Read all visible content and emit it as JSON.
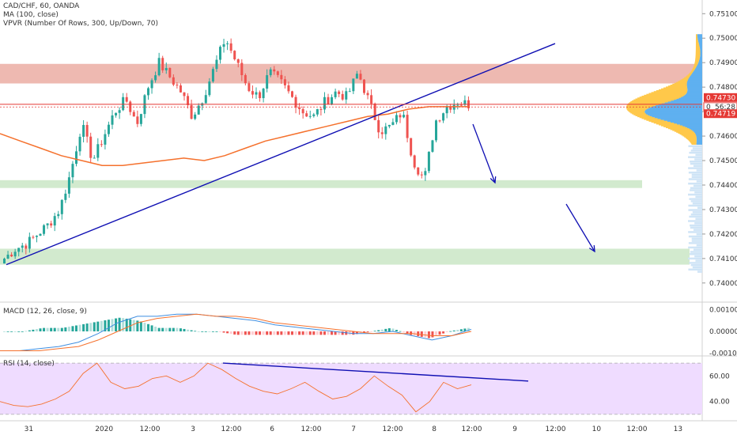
{
  "legend": {
    "symbol": "CAD/CHF, 60, OANDA",
    "ma": "MA (100, close)",
    "vpvr": "VPVR (Number Of Rows, 300, Up/Down, 70)",
    "macd": "MACD (12, 26, close, 9)",
    "rsi": "RSI (14, close)"
  },
  "price_tags": {
    "upper": "0.74730",
    "timer": "56:28",
    "lower": "0.74719",
    "prefix": "0"
  },
  "colors": {
    "up": "#26a69a",
    "down": "#ef5350",
    "ma": "#f5712d",
    "trend": "#0f0fb3",
    "resistance_zone": "#e8a197",
    "support_zone": "#cde8c9",
    "rsi_bg": "#efdcff",
    "macd_line": "#3f8ee0",
    "signal_line": "#f5712d",
    "level_line": "#e53935",
    "vp_up": "#5fb0f0",
    "vp_down": "#ffc84a"
  },
  "chart_data": [
    {
      "type": "candlestick",
      "title": "CAD/CHF, 60, OANDA",
      "ylim": [
        0.7398,
        0.7513
      ],
      "y_ticks": [
        "0.75100",
        "0.75000",
        "0.74900",
        "0.74800",
        "0.74700",
        "0.74600",
        "0.74500",
        "0.74400",
        "0.74300",
        "0.74200",
        "0.74100",
        "0.74000"
      ],
      "x_ticks": [
        "31",
        "2020",
        "12:00",
        "3",
        "12:00",
        "6",
        "12:00",
        "7",
        "12:00",
        "8",
        "12:00",
        "9",
        "12:00",
        "10",
        "12:00",
        "13"
      ],
      "ohlc_anchor_closes": [
        0.741,
        0.7414,
        0.7416,
        0.742,
        0.7424,
        0.743,
        0.7445,
        0.7465,
        0.745,
        0.746,
        0.747,
        0.7475,
        0.7465,
        0.748,
        0.749,
        0.7484,
        0.7478,
        0.7468,
        0.7476,
        0.7488,
        0.75,
        0.749,
        0.748,
        0.7476,
        0.7486,
        0.7482,
        0.7476,
        0.747,
        0.7468,
        0.7474,
        0.7478,
        0.7476,
        0.7486,
        0.7474,
        0.7462,
        0.7464,
        0.747,
        0.745,
        0.7442,
        0.7466,
        0.7472,
        0.7474,
        0.7473
      ],
      "ma": {
        "name": "MA (100, close)",
        "values": [
          0.7461,
          0.7458,
          0.7455,
          0.7452,
          0.745,
          0.7448,
          0.7448,
          0.7449,
          0.745,
          0.7451,
          0.745,
          0.7452,
          0.7455,
          0.7458,
          0.746,
          0.7462,
          0.7464,
          0.7466,
          0.7468,
          0.7469,
          0.7471,
          0.7472,
          0.7472,
          0.7472
        ]
      },
      "zones": [
        {
          "kind": "resistance",
          "from": 0.74815,
          "to": 0.74895
        },
        {
          "kind": "support",
          "from": 0.74388,
          "to": 0.7442
        },
        {
          "kind": "support",
          "from": 0.74075,
          "to": 0.7414
        }
      ],
      "horizontal_levels": [
        0.7473,
        0.74719
      ],
      "trend_line": [
        [
          0.74075,
          "31"
        ],
        [
          0.74978,
          "12:00 (9)"
        ]
      ]
    },
    {
      "type": "line",
      "title": "MACD (12, 26, close, 9)",
      "y_ticks": [
        "0.00100",
        "0.00000",
        "-0.00100"
      ],
      "ylim": [
        -0.0011,
        0.0011
      ],
      "series": [
        {
          "name": "MACD",
          "values": [
            -0.0009,
            -0.0009,
            -0.0008,
            -0.0007,
            -0.0005,
            -0.0001,
            0.0004,
            0.0007,
            0.0007,
            0.0008,
            0.0008,
            0.0007,
            0.0006,
            0.0005,
            0.0003,
            0.0002,
            0.0001,
            0.0,
            -0.0001,
            -0.0001,
            0.0,
            -0.0002,
            -0.0004,
            -0.0002,
            0.0001
          ]
        },
        {
          "name": "Signal",
          "values": [
            -0.0009,
            -0.0009,
            -0.0009,
            -0.0008,
            -0.0007,
            -0.0004,
            0.0,
            0.0004,
            0.0006,
            0.0007,
            0.0008,
            0.0007,
            0.0007,
            0.0006,
            0.0004,
            0.0003,
            0.0002,
            0.0001,
            0.0,
            -0.0001,
            -0.0001,
            -0.0001,
            -0.0002,
            -0.0002,
            0.0
          ]
        }
      ]
    },
    {
      "type": "line",
      "title": "RSI (14, close)",
      "y_ticks": [
        "60.00",
        "40.00"
      ],
      "ylim": [
        25,
        75
      ],
      "bands": [
        70,
        30
      ],
      "series": [
        {
          "name": "RSI",
          "values": [
            40,
            37,
            36,
            38,
            42,
            48,
            62,
            70,
            55,
            50,
            52,
            58,
            60,
            55,
            60,
            70,
            65,
            58,
            52,
            48,
            46,
            50,
            55,
            48,
            42,
            44,
            50,
            60,
            52,
            45,
            32,
            40,
            55,
            50,
            53
          ]
        }
      ]
    }
  ]
}
